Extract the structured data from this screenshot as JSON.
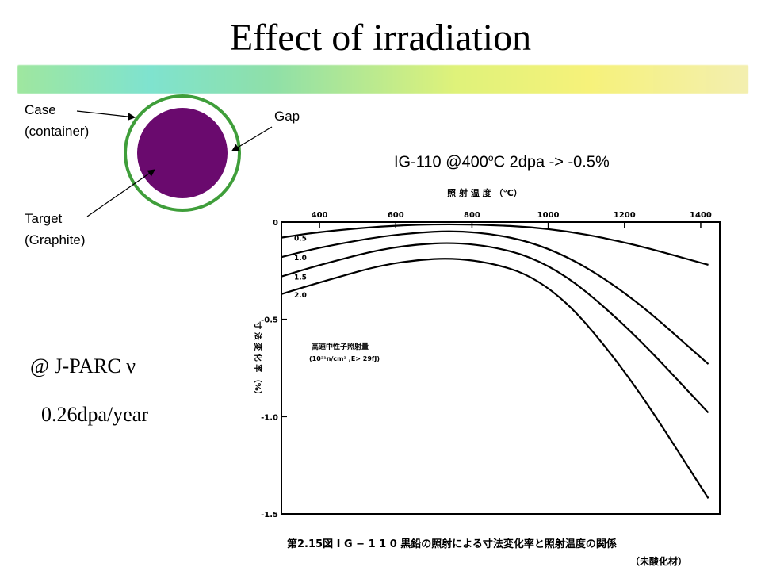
{
  "slide": {
    "title": "Effect of irradiation",
    "case_label_1": "Case",
    "case_label_2": "(container)",
    "gap_label": "Gap",
    "target_label_1": "Target",
    "target_label_2": "(Graphite)",
    "note_pre": "IG-110 @400",
    "note_sup": "o",
    "note_post": "C 2dpa ->  -0.5%",
    "jparc": "@ J-PARC ν",
    "rate": "0.26dpa/year",
    "colors": {
      "target": "#6a0a6e",
      "case_ring": "#3f9e3a"
    }
  },
  "chart_data": {
    "type": "line",
    "title": "第2.15図  I G − 1 1 0 黒鉛の照射による寸法変化率と照射温度の関係",
    "subtitle": "（未酸化材）",
    "xlabel": "照 射 温 度  （℃）",
    "ylabel": "寸 法 変 化 率 （%）",
    "xlim": [
      300,
      1450
    ],
    "ylim": [
      -1.5,
      0
    ],
    "x_ticks": [
      "400",
      "600",
      "800",
      "1000",
      "1200",
      "1400"
    ],
    "y_ticks": [
      "0",
      "-0.5",
      "-1.0",
      "-1.5"
    ],
    "legend_title": "高速中性子照射量",
    "legend_units": "(10²¹n/cm² ,E> 29fJ)",
    "series": [
      {
        "name": "0.5",
        "x": [
          300,
          400,
          600,
          800,
          1000,
          1200,
          1420
        ],
        "y": [
          -0.08,
          -0.05,
          -0.015,
          -0.01,
          -0.03,
          -0.1,
          -0.22
        ]
      },
      {
        "name": "1.0",
        "x": [
          300,
          400,
          600,
          800,
          1000,
          1200,
          1420
        ],
        "y": [
          -0.18,
          -0.13,
          -0.06,
          -0.04,
          -0.12,
          -0.35,
          -0.73
        ]
      },
      {
        "name": "1.5",
        "x": [
          300,
          400,
          600,
          800,
          1000,
          1200,
          1420
        ],
        "y": [
          -0.28,
          -0.22,
          -0.12,
          -0.1,
          -0.2,
          -0.52,
          -0.98
        ]
      },
      {
        "name": "2.0",
        "x": [
          300,
          400,
          600,
          800,
          1000,
          1200,
          1420
        ],
        "y": [
          -0.37,
          -0.31,
          -0.2,
          -0.18,
          -0.3,
          -0.75,
          -1.42
        ]
      }
    ]
  }
}
